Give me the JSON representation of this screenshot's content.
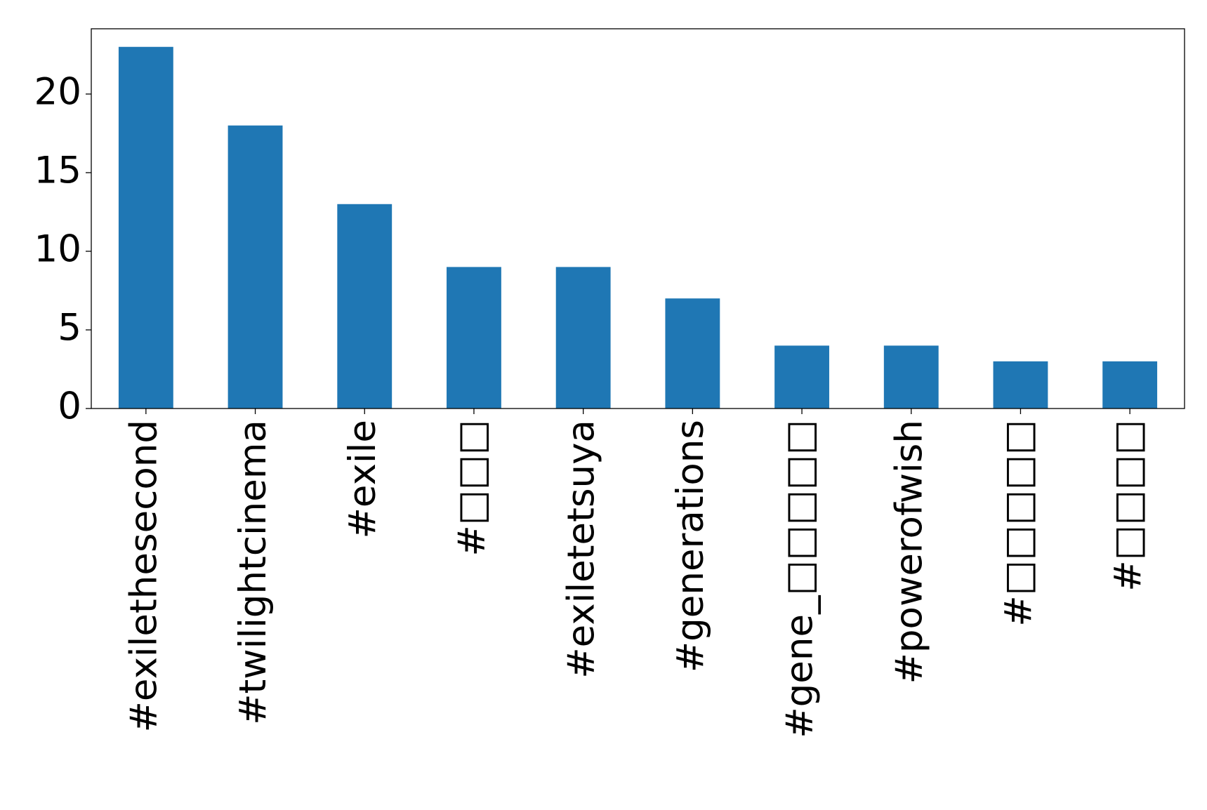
{
  "chart_data": {
    "type": "bar",
    "categories": [
      "#exilethesecond",
      "#twilightcinema",
      "#exile",
      "#□□□",
      "#exiletetsuya",
      "#generations",
      "#gene_□□□□□",
      "#powerofwish",
      "#□□□□□",
      "#□□□□"
    ],
    "values": [
      23,
      18,
      13,
      9,
      9,
      7,
      4,
      4,
      3,
      3
    ],
    "color": "#1f77b4",
    "ylim": [
      0,
      24.15
    ],
    "yticks": [
      0,
      5,
      10,
      15,
      20
    ]
  }
}
